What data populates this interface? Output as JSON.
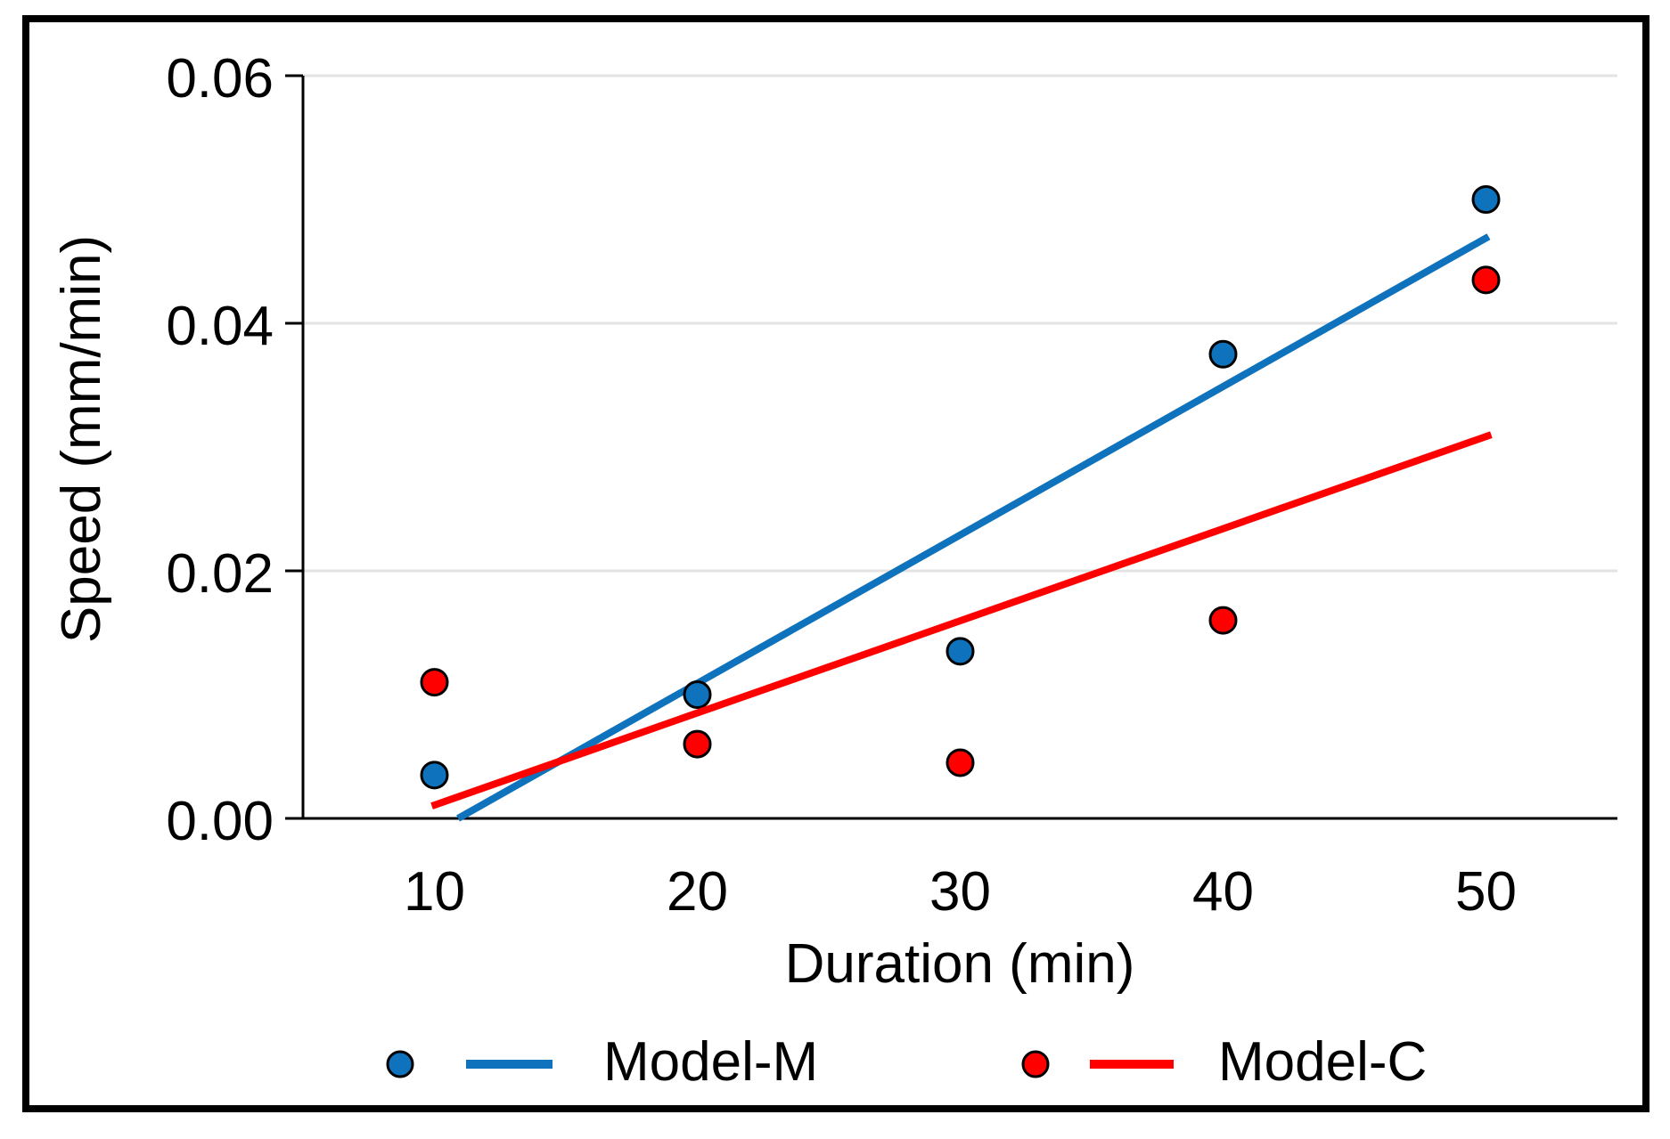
{
  "chart_data": {
    "type": "scatter",
    "title": "",
    "xlabel": "Duration (min)",
    "ylabel": "Speed (mm/min)",
    "xlim": [
      5,
      55
    ],
    "ylim": [
      0,
      0.06
    ],
    "grid": "horizontal-only",
    "legend_position": "bottom-center",
    "x_ticks": [
      {
        "value": 10,
        "label": "10"
      },
      {
        "value": 20,
        "label": "20"
      },
      {
        "value": 30,
        "label": "30"
      },
      {
        "value": 40,
        "label": "40"
      },
      {
        "value": 50,
        "label": "50"
      }
    ],
    "y_ticks": [
      {
        "value": 0.0,
        "label": "0.00"
      },
      {
        "value": 0.02,
        "label": "0.02"
      },
      {
        "value": 0.04,
        "label": "0.04"
      },
      {
        "value": 0.06,
        "label": "0.06"
      }
    ],
    "series": [
      {
        "name": "Model-M",
        "color": "#0E72BC",
        "marker": "circle",
        "x": [
          10,
          20,
          30,
          40,
          50
        ],
        "y": [
          0.0035,
          0.01,
          0.0135,
          0.0375,
          0.05
        ],
        "trendline": {
          "x": [
            10.9,
            50.1
          ],
          "y": [
            0.0,
            0.047
          ]
        }
      },
      {
        "name": "Model-C",
        "color": "#FF0000",
        "marker": "circle",
        "x": [
          10,
          20,
          30,
          40,
          50
        ],
        "y": [
          0.011,
          0.006,
          0.0045,
          0.016,
          0.0435
        ],
        "trendline": {
          "x": [
            9.9,
            50.2
          ],
          "y": [
            0.001,
            0.031
          ]
        }
      }
    ],
    "style": {
      "gridline_color": "#E3E3E3",
      "axis_color": "#000000",
      "marker_outline": "#000000",
      "figure_border_color": "#000000"
    }
  }
}
